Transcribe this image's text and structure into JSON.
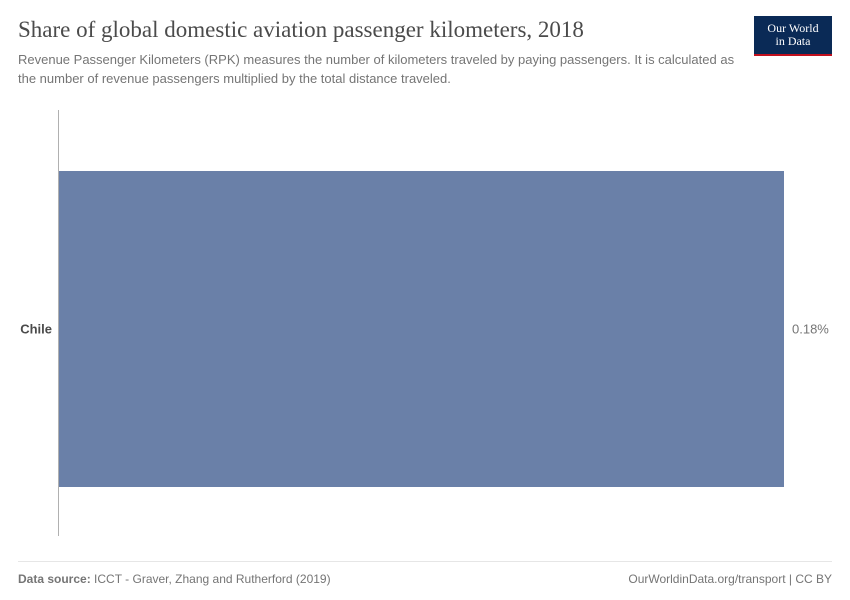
{
  "header": {
    "title": "Share of global domestic aviation passenger kilometers, 2018",
    "subtitle": "Revenue Passenger Kilometers (RPK) measures the number of kilometers traveled by paying passengers. It is calculated as the number of revenue passengers multiplied by the total distance traveled."
  },
  "logo": {
    "line1": "Our World",
    "line2": "in Data"
  },
  "chart": {
    "type": "bar",
    "orientation": "horizontal",
    "category": "Chile",
    "value": 0.18,
    "value_label": "0.18%",
    "xlim": [
      0,
      0.18
    ],
    "bar_color": "#6a80a8",
    "bar_top_pct": 14,
    "bar_height_pct": 72,
    "value_color": "#757575",
    "category_color": "#4b4b4b",
    "axis_color": "#b0b0b0",
    "background_color": "#ffffff",
    "category_fontsize": 13,
    "category_fontweight": 700,
    "value_fontsize": 13
  },
  "footer": {
    "source_label": "Data source:",
    "source_text": "ICCT - Graver, Zhang and Rutherford (2019)",
    "right_text": "OurWorldinData.org/transport | CC BY"
  },
  "colors": {
    "title": "#4b4b4b",
    "subtitle": "#757575",
    "logo_bg": "#0a2a56",
    "logo_accent": "#c1101e",
    "footer_border": "#e6e6e6"
  }
}
